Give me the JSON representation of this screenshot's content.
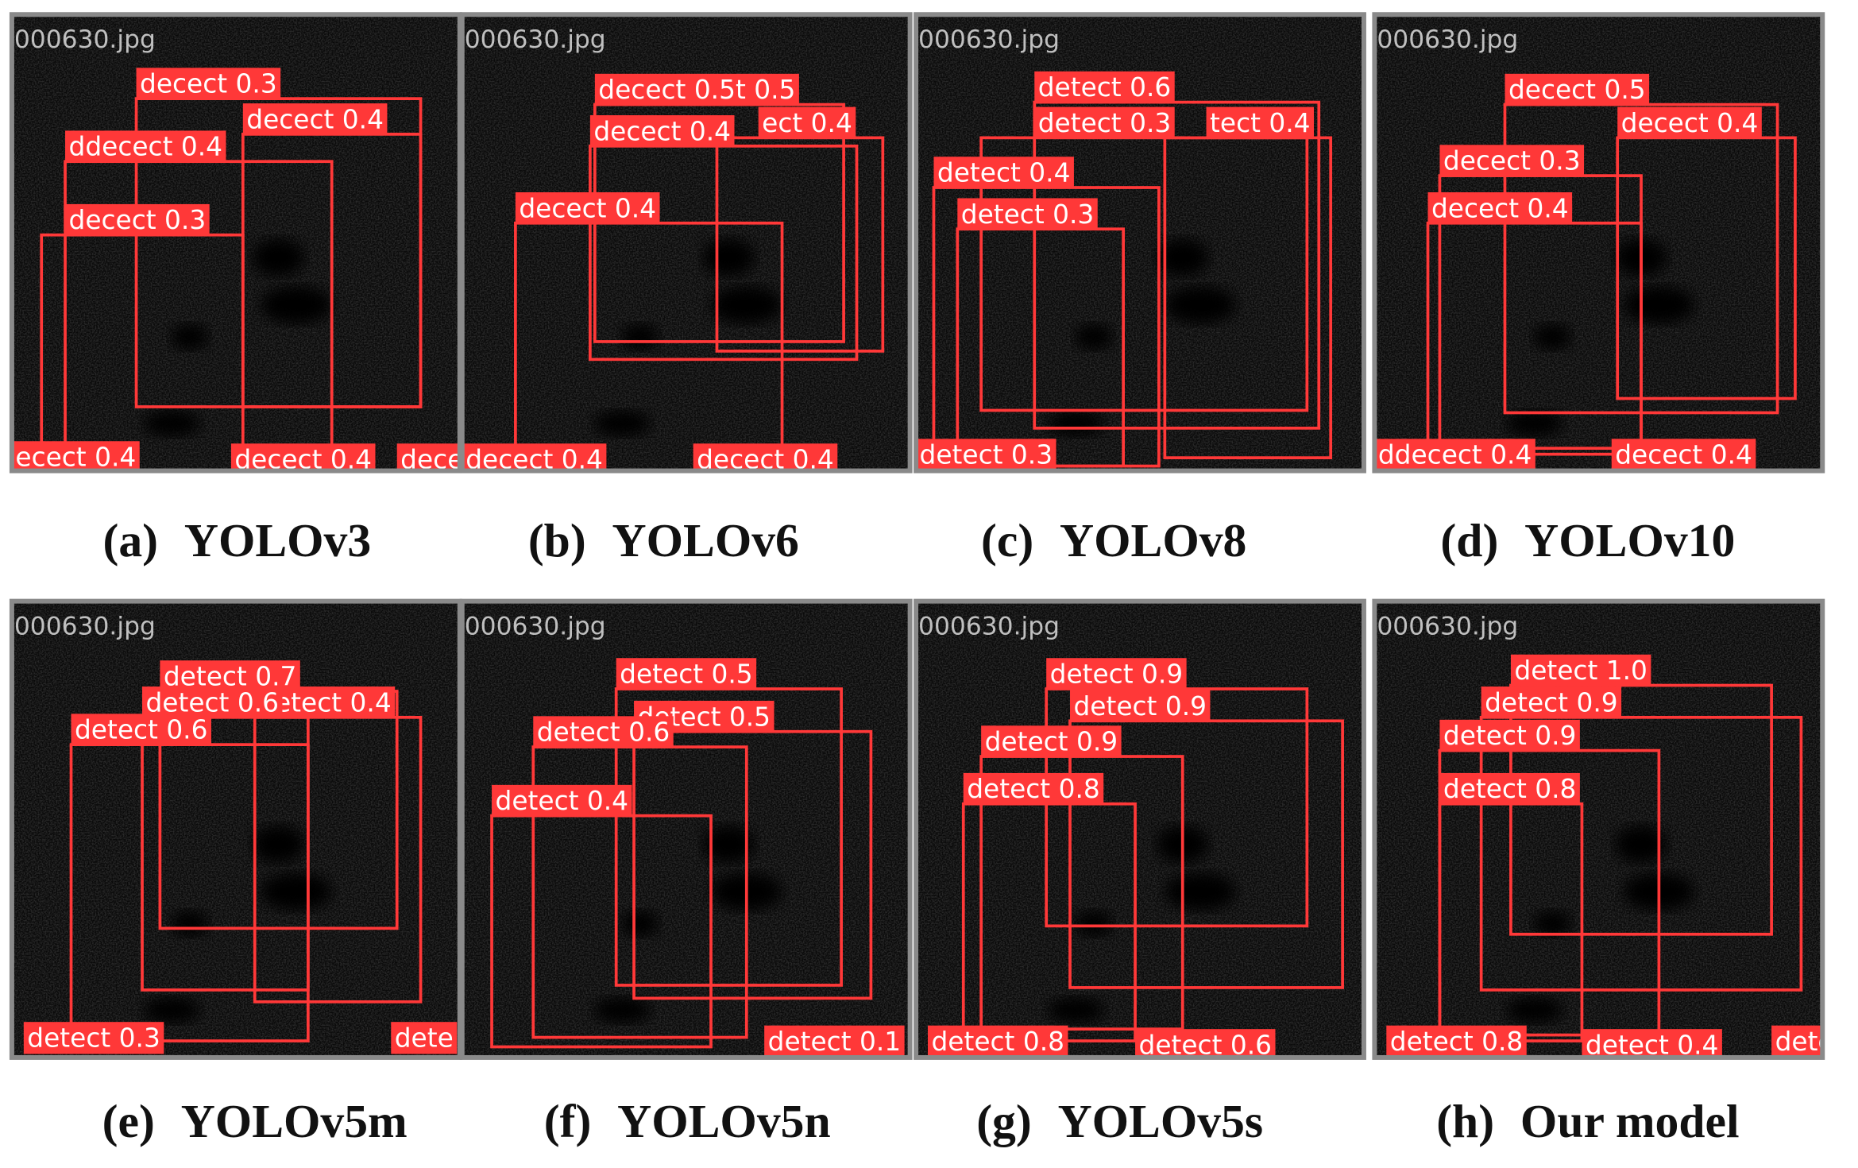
{
  "panels": [
    {
      "caption_letter": "(a)",
      "caption_model": "YOLOv3",
      "filename": "000630.jpg",
      "detections": [
        "decect 0.3",
        "decect 0.4",
        "ddecect 0.4",
        "decect 0.3",
        "ecect 0.4",
        "decect 0.4",
        "dece"
      ]
    },
    {
      "caption_letter": "(b)",
      "caption_model": "YOLOv6",
      "filename": "000630.jpg",
      "detections": [
        "decect 0.5t 0.5",
        "decect 0.4",
        "ect 0.4",
        "decect 0.4",
        "decect 0.4",
        "decect 0.4"
      ]
    },
    {
      "caption_letter": "(c)",
      "caption_model": "YOLOv8",
      "filename": "000630.jpg",
      "detections": [
        "detect 0.6",
        "detect 0.3",
        "tect 0.4",
        "detect 0.4",
        "detect 0.3",
        "detect 0.3"
      ]
    },
    {
      "caption_letter": "(d)",
      "caption_model": "YOLOv10",
      "filename": "000630.jpg",
      "detections": [
        "decect 0.5",
        "decect 0.4",
        "decect 0.3",
        "decect 0.4",
        "ddecect 0.4",
        "decect 0.4"
      ]
    },
    {
      "caption_letter": "(e)",
      "caption_model": "YOLOv5m",
      "filename": "000630.jpg",
      "detections": [
        "detect 0.7",
        "detect 0.4",
        "detect 0.6",
        "detect 0.6",
        "detect 0.3",
        "dete"
      ]
    },
    {
      "caption_letter": "(f)",
      "caption_model": "YOLOv5n",
      "filename": "000630.jpg",
      "detections": [
        "detect 0.5",
        "detect 0.5",
        "detect 0.6",
        "detect 0.4",
        "detect 0.1"
      ]
    },
    {
      "caption_letter": "(g)",
      "caption_model": "YOLOv5s",
      "filename": "000630.jpg",
      "detections": [
        "detect 0.9",
        "detect 0.9",
        "detect 0.9",
        "detect 0.8",
        "detect 0.8",
        "detect 0.6"
      ]
    },
    {
      "caption_letter": "(h)",
      "caption_model": "Our model",
      "filename": "000630.jpg",
      "detections": [
        "detect 1.0",
        "detect 0.9",
        "detect 0.9",
        "detect 0.8",
        "detect 0.8",
        "detect 0.4",
        "dete"
      ]
    }
  ]
}
